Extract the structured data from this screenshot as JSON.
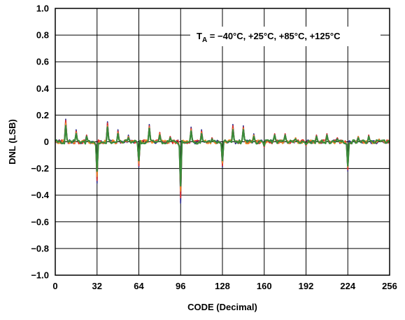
{
  "chart_data": {
    "type": "line",
    "title": "",
    "xlabel": "CODE (Decimal)",
    "ylabel": "DNL (LSB)",
    "xlim": [
      0,
      256
    ],
    "ylim": [
      -1.0,
      1.0
    ],
    "x_ticks": [
      0,
      32,
      64,
      96,
      128,
      160,
      192,
      224,
      256
    ],
    "x_tick_labels": [
      "0",
      "32",
      "64",
      "96",
      "128",
      "160",
      "192",
      "224",
      "256"
    ],
    "y_ticks": [
      1.0,
      0.8,
      0.6,
      0.4,
      0.2,
      0,
      -0.2,
      -0.4,
      -0.6,
      -0.8,
      -1.0
    ],
    "y_tick_labels": [
      "1.0",
      "0.8",
      "0.6",
      "0.4",
      "0.2",
      "0",
      "−0.2",
      "−0.4",
      "−0.6",
      "−0.8",
      "−1.0"
    ],
    "grid": true,
    "annotation": {
      "prefix": "T",
      "subscript": "A",
      "text": " = −40°C, +25°C, +85°C, +125°C"
    },
    "colors": [
      "#2a2a8c",
      "#e0302a",
      "#f08c28",
      "#3a8a3a"
    ],
    "series": [
      {
        "spikes": [
          [
            8,
            0.17
          ],
          [
            16,
            0.09
          ],
          [
            24,
            0.05
          ],
          [
            32,
            -0.31
          ],
          [
            40,
            0.15
          ],
          [
            48,
            0.09
          ],
          [
            56,
            0.05
          ],
          [
            64,
            -0.19
          ],
          [
            72,
            0.13
          ],
          [
            80,
            0.07
          ],
          [
            88,
            0.04
          ],
          [
            96,
            -0.46
          ],
          [
            104,
            0.11
          ],
          [
            112,
            0.09
          ],
          [
            120,
            0.03
          ],
          [
            128,
            -0.19
          ],
          [
            136,
            0.13
          ],
          [
            144,
            0.12
          ],
          [
            152,
            0.06
          ],
          [
            160,
            -0.04
          ],
          [
            168,
            0.06
          ],
          [
            176,
            0.06
          ],
          [
            184,
            0.03
          ],
          [
            192,
            -0.03
          ],
          [
            200,
            0.05
          ],
          [
            208,
            0.06
          ],
          [
            216,
            0.03
          ],
          [
            224,
            -0.22
          ],
          [
            232,
            0.04
          ],
          [
            240,
            0.05
          ],
          [
            248,
            0.02
          ]
        ]
      },
      {
        "spikes": [
          [
            8,
            0.16
          ],
          [
            16,
            0.08
          ],
          [
            24,
            0.05
          ],
          [
            32,
            -0.29
          ],
          [
            40,
            0.14
          ],
          [
            48,
            0.08
          ],
          [
            56,
            0.04
          ],
          [
            64,
            -0.18
          ],
          [
            72,
            0.12
          ],
          [
            80,
            0.07
          ],
          [
            88,
            0.04
          ],
          [
            96,
            -0.42
          ],
          [
            104,
            0.1
          ],
          [
            112,
            0.08
          ],
          [
            120,
            0.03
          ],
          [
            128,
            -0.18
          ],
          [
            136,
            0.12
          ],
          [
            144,
            0.11
          ],
          [
            152,
            0.05
          ],
          [
            160,
            -0.04
          ],
          [
            168,
            0.06
          ],
          [
            176,
            0.06
          ],
          [
            184,
            0.03
          ],
          [
            192,
            -0.03
          ],
          [
            200,
            0.05
          ],
          [
            208,
            0.06
          ],
          [
            216,
            0.03
          ],
          [
            224,
            -0.21
          ],
          [
            232,
            0.04
          ],
          [
            240,
            0.05
          ],
          [
            248,
            0.02
          ]
        ]
      },
      {
        "spikes": [
          [
            8,
            0.14
          ],
          [
            16,
            0.07
          ],
          [
            24,
            0.04
          ],
          [
            32,
            -0.26
          ],
          [
            40,
            0.12
          ],
          [
            48,
            0.07
          ],
          [
            56,
            0.04
          ],
          [
            64,
            -0.16
          ],
          [
            72,
            0.11
          ],
          [
            80,
            0.06
          ],
          [
            88,
            0.03
          ],
          [
            96,
            -0.37
          ],
          [
            104,
            0.09
          ],
          [
            112,
            0.07
          ],
          [
            120,
            0.02
          ],
          [
            128,
            -0.16
          ],
          [
            136,
            0.1
          ],
          [
            144,
            0.1
          ],
          [
            152,
            0.05
          ],
          [
            160,
            -0.03
          ],
          [
            168,
            0.05
          ],
          [
            176,
            0.05
          ],
          [
            184,
            0.03
          ],
          [
            192,
            -0.02
          ],
          [
            200,
            0.04
          ],
          [
            208,
            0.05
          ],
          [
            216,
            0.02
          ],
          [
            224,
            -0.19
          ],
          [
            232,
            0.04
          ],
          [
            240,
            0.04
          ],
          [
            248,
            0.02
          ]
        ]
      },
      {
        "spikes": [
          [
            8,
            0.12
          ],
          [
            16,
            0.06
          ],
          [
            24,
            0.04
          ],
          [
            32,
            -0.22
          ],
          [
            40,
            0.11
          ],
          [
            48,
            0.06
          ],
          [
            56,
            0.03
          ],
          [
            64,
            -0.14
          ],
          [
            72,
            0.1
          ],
          [
            80,
            0.05
          ],
          [
            88,
            0.03
          ],
          [
            96,
            -0.33
          ],
          [
            104,
            0.08
          ],
          [
            112,
            0.06
          ],
          [
            120,
            0.02
          ],
          [
            128,
            -0.14
          ],
          [
            136,
            0.09
          ],
          [
            144,
            0.09
          ],
          [
            152,
            0.04
          ],
          [
            160,
            -0.03
          ],
          [
            168,
            0.05
          ],
          [
            176,
            0.05
          ],
          [
            184,
            0.02
          ],
          [
            192,
            -0.02
          ],
          [
            200,
            0.04
          ],
          [
            208,
            0.05
          ],
          [
            216,
            0.02
          ],
          [
            224,
            -0.18
          ],
          [
            232,
            0.03
          ],
          [
            240,
            0.04
          ],
          [
            248,
            0.01
          ]
        ]
      }
    ]
  }
}
